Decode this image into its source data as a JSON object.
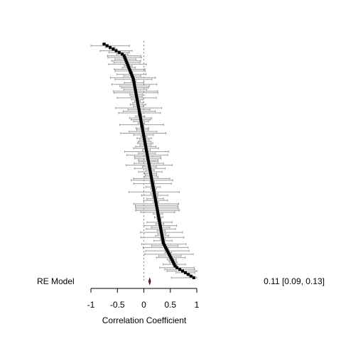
{
  "chart_data": {
    "type": "forest",
    "xlabel": "Correlation Coefficient",
    "xlim": [
      -1,
      1
    ],
    "xticks": [
      "-1",
      "-0.5",
      "0",
      "0.5",
      "1"
    ],
    "reference_line": 0,
    "n_studies": 140,
    "estimate_min": -0.78,
    "estimate_max": 0.97,
    "ci_halfwidth_range": [
      0.03,
      0.48
    ],
    "summary": {
      "label": "RE Model",
      "estimate": 0.11,
      "ci_low": 0.09,
      "ci_high": 0.13,
      "text": "0.11 [0.09, 0.13]"
    },
    "colors": {
      "point": "#000000",
      "ci": "#9e9e9e",
      "summary": "#8b1a1a",
      "reference": "#888888"
    }
  }
}
